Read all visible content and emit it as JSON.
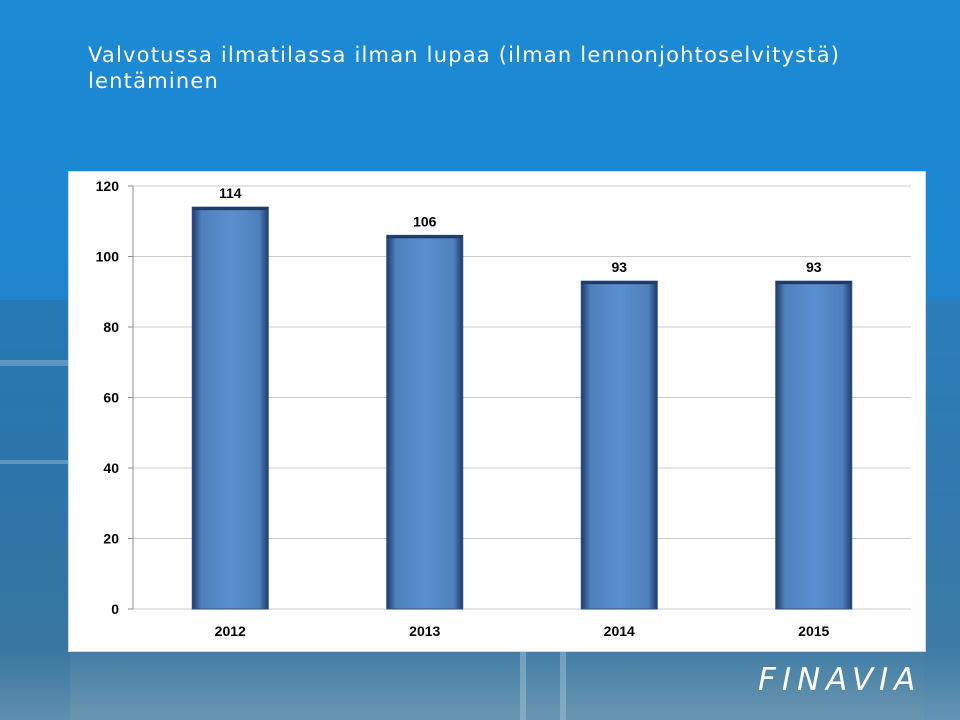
{
  "slide": {
    "title_line1": "Valvotussa ilmatilassa ilman lupaa (ilman lennonjohtoselvitystä)",
    "title_line2": "lentäminen"
  },
  "logo": {
    "text": "FINAVIA"
  },
  "colors": {
    "bar": "#4f81bd",
    "bar_dark": "#1f3b6a",
    "grid": "#c8ccd0",
    "background": "#1c8ad6"
  },
  "chart_data": {
    "type": "bar",
    "categories": [
      "2012",
      "2013",
      "2014",
      "2015"
    ],
    "values": [
      114,
      106,
      93,
      93
    ],
    "data_labels": [
      "114",
      "106",
      "93",
      "93"
    ],
    "yticks": [
      "0",
      "20",
      "40",
      "60",
      "80",
      "100",
      "120"
    ],
    "ylim": [
      0,
      120
    ],
    "grid": true,
    "legend": "none"
  }
}
